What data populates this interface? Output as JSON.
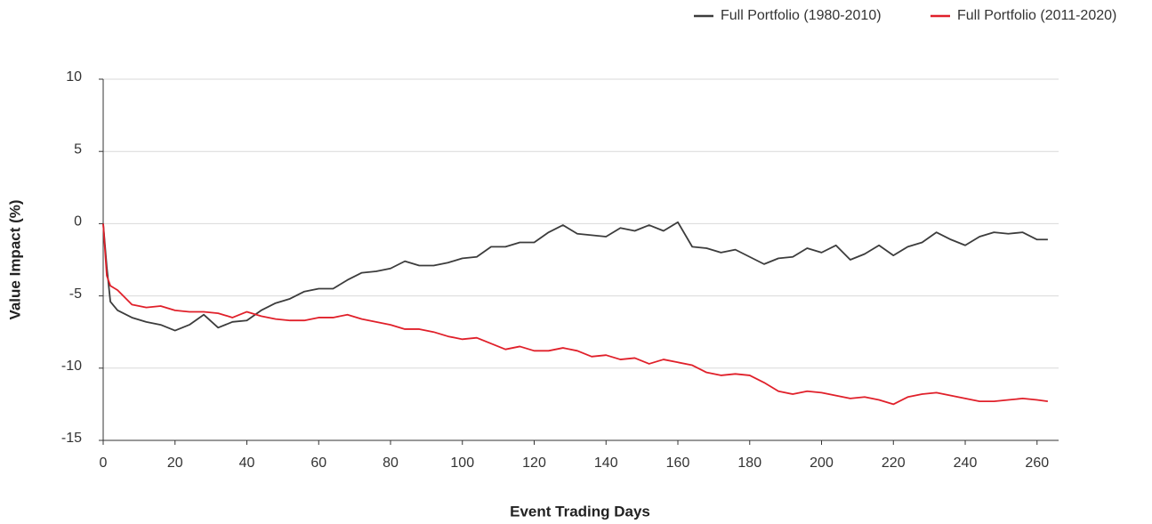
{
  "chart_data": {
    "type": "line",
    "xlabel": "Event Trading Days",
    "ylabel": "Value Impact (%)",
    "x": [
      0,
      1,
      2,
      4,
      8,
      12,
      16,
      20,
      24,
      28,
      32,
      36,
      40,
      44,
      48,
      52,
      56,
      60,
      64,
      68,
      72,
      76,
      80,
      84,
      88,
      92,
      96,
      100,
      104,
      108,
      112,
      116,
      120,
      124,
      128,
      132,
      136,
      140,
      144,
      148,
      152,
      156,
      160,
      164,
      168,
      172,
      176,
      180,
      184,
      188,
      192,
      196,
      200,
      204,
      208,
      212,
      216,
      220,
      224,
      228,
      232,
      236,
      240,
      244,
      248,
      252,
      256,
      260,
      263
    ],
    "series": [
      {
        "name": "Full Portfolio (1980-2010)",
        "color": "#3c3c3c",
        "values": [
          0,
          -3,
          -5.4,
          -6,
          -6.5,
          -6.8,
          -7,
          -7.4,
          -7,
          -6.3,
          -7.2,
          -6.8,
          -6.7,
          -6,
          -5.5,
          -5.2,
          -4.7,
          -4.5,
          -4.5,
          -3.9,
          -3.4,
          -3.3,
          -3.1,
          -2.6,
          -2.9,
          -2.9,
          -2.7,
          -2.4,
          -2.3,
          -1.6,
          -1.6,
          -1.3,
          -1.3,
          -0.6,
          -0.1,
          -0.7,
          -0.8,
          -0.9,
          -0.3,
          -0.5,
          -0.1,
          -0.5,
          0.1,
          -1.6,
          -1.7,
          -2,
          -1.8,
          -2.3,
          -2.8,
          -2.4,
          -2.3,
          -1.7,
          -2,
          -1.5,
          -2.5,
          -2.1,
          -1.5,
          -2.2,
          -1.6,
          -1.3,
          -0.6,
          -1.1,
          -1.5,
          -0.9,
          -0.6,
          -0.7,
          -0.6,
          -1.1,
          -1.1
        ]
      },
      {
        "name": "Full Portfolio (2011-2020)",
        "color": "#e0202a",
        "values": [
          0,
          -3.6,
          -4.3,
          -4.6,
          -5.6,
          -5.8,
          -5.7,
          -6,
          -6.1,
          -6.1,
          -6.2,
          -6.5,
          -6.1,
          -6.4,
          -6.6,
          -6.7,
          -6.7,
          -6.5,
          -6.5,
          -6.3,
          -6.6,
          -6.8,
          -7,
          -7.3,
          -7.3,
          -7.5,
          -7.8,
          -8,
          -7.9,
          -8.3,
          -8.7,
          -8.5,
          -8.8,
          -8.8,
          -8.6,
          -8.8,
          -9.2,
          -9.1,
          -9.4,
          -9.3,
          -9.7,
          -9.4,
          -9.6,
          -9.8,
          -10.3,
          -10.5,
          -10.4,
          -10.5,
          -11,
          -11.6,
          -11.8,
          -11.6,
          -11.7,
          -11.9,
          -12.1,
          -12,
          -12.2,
          -12.5,
          -12,
          -11.8,
          -11.7,
          -11.9,
          -12.1,
          -12.3,
          -12.3,
          -12.2,
          -12.1,
          -12.2,
          -12.3
        ]
      }
    ],
    "xlim": [
      0,
      266
    ],
    "xticks": [
      0,
      20,
      40,
      60,
      80,
      100,
      120,
      140,
      160,
      180,
      200,
      220,
      240,
      260
    ],
    "ylim": [
      -15,
      10
    ],
    "yticks": [
      -15,
      -10,
      -5,
      0,
      5,
      10
    ],
    "grid": true,
    "legend": "top-right"
  }
}
